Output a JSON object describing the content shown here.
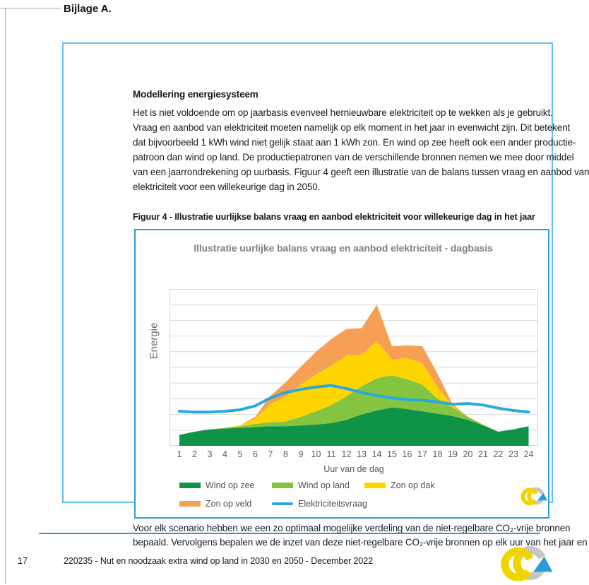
{
  "page": {
    "heading": "Bijlage A.",
    "footer": {
      "page_number": "17",
      "text": "220235 - Nut en noodzaak extra wind op land in 2030 en 2050 - December 2022"
    }
  },
  "textbox": {
    "heading": "Modellering energiesysteem",
    "paragraph1_lines": [
      "Het is niet voldoende om op jaarbasis evenveel hernieuwbare elektriciteit op te wekken als je gebruikt.",
      "Vraag en aanbod van elektriciteit moeten namelijk op elk moment in het jaar in evenwicht zijn. Dit betekent",
      "dat bijvoorbeeld 1 kWh wind niet gelijk staat aan 1 kWh zon. En wind op zee heeft ook een ander productie-",
      "patroon dan wind op land. De productiepatronen van de verschillende bronnen nemen we mee door middel",
      "van een jaarrondrekening op uurbasis. Figuur 4 geeft een illustratie van de balans tussen vraag en aanbod van",
      "elektriciteit voor een willekeurige dag in 2050."
    ],
    "figure_caption": "Figuur 4 - Illustratie uurlijkse balans vraag en aanbod elektriciteit voor willekeurige dag in het jaar",
    "paragraph2_lines": [
      "Voor elk scenario hebben we een zo optimaal mogelijke verdeling van de niet-regelbare CO₂-vrije bronnen",
      "bepaald. Vervolgens bepalen we de inzet van deze niet-regelbare CO₂-vrije bronnen op elk uur van het jaar en"
    ]
  },
  "chart_data": {
    "type": "area",
    "stacked": true,
    "title": "Illustratie uurlijke balans vraag en aanbod elektriciteit - dagbasis",
    "xlabel": "Uur van de dag",
    "ylabel": "Energie",
    "x": [
      1,
      2,
      3,
      4,
      5,
      6,
      7,
      8,
      9,
      10,
      11,
      12,
      13,
      14,
      15,
      16,
      17,
      18,
      19,
      20,
      21,
      22,
      23,
      24
    ],
    "ylim": [
      0,
      100
    ],
    "grid_step": 10,
    "y_tick_labels_visible": false,
    "legend_position": "bottom",
    "grid_color": "#d9d9d9",
    "series": [
      {
        "name": "Wind op zee",
        "type": "area",
        "color": "#0e9347",
        "values": [
          7,
          9,
          10.5,
          11,
          11.5,
          12,
          12.5,
          12.5,
          13,
          13.5,
          14.5,
          16.5,
          20,
          22.5,
          24.5,
          23.5,
          22,
          20.5,
          19,
          16.5,
          13,
          9,
          10.5,
          12.5
        ]
      },
      {
        "name": "Wind op land",
        "type": "area",
        "color": "#85c441",
        "values": [
          0,
          0,
          0,
          0.5,
          1,
          2,
          2.5,
          3,
          5.5,
          8.5,
          11.5,
          15,
          18,
          20.5,
          20.5,
          19,
          17,
          9.5,
          5.5,
          2,
          0.5,
          0,
          0,
          0
        ]
      },
      {
        "name": "Zon op dak",
        "type": "area",
        "color": "#ffd500",
        "values": [
          0,
          0,
          0,
          0,
          0.5,
          3.5,
          11.5,
          16,
          20.5,
          23.5,
          25,
          26,
          20,
          23.5,
          10,
          13.5,
          13.5,
          7.5,
          1,
          0,
          0,
          0,
          0,
          0
        ]
      },
      {
        "name": "Zon op veld",
        "type": "area",
        "color": "#f5a054",
        "values": [
          0,
          0,
          0,
          0,
          0,
          1,
          5.5,
          9,
          11.5,
          14.5,
          17,
          17,
          17,
          23.5,
          8.5,
          8,
          11,
          8.5,
          1,
          0,
          0,
          0,
          0,
          0
        ]
      },
      {
        "name": "Elektriciteitsvraag",
        "type": "line",
        "color": "#29a8e0",
        "values": [
          22,
          21.5,
          21.5,
          22,
          23,
          25.5,
          30.5,
          34,
          36,
          37.5,
          38.5,
          36.5,
          34,
          32,
          30.5,
          29.5,
          29,
          28,
          26.5,
          27,
          26,
          24,
          22.5,
          21.5
        ]
      }
    ],
    "legend_rows": [
      3,
      2
    ]
  },
  "icons": {
    "chart_logo": "ce-delft-logo",
    "footer_logo": "ce-delft-logo"
  }
}
